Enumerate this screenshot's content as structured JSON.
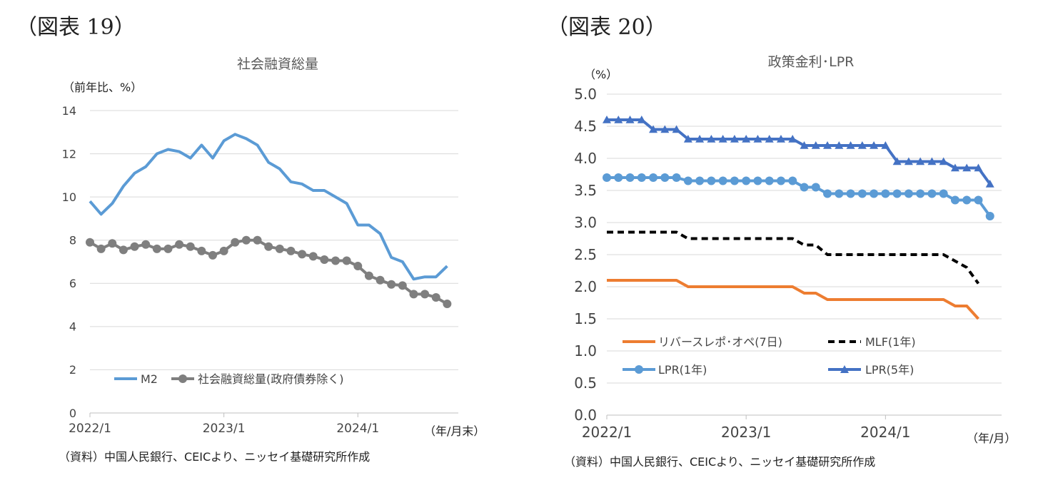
{
  "chart_data": [
    {
      "type": "line",
      "heading": "（図表 19）",
      "title": "社会融資総量",
      "ylabel": "（前年比、%）",
      "xlabel": "（年/月末）",
      "source": "（資料）中国人民銀行、CEICより、ニッセイ基礎研究所作成",
      "ylim": [
        0,
        14
      ],
      "yticks": [
        "0",
        "2",
        "4",
        "6",
        "8",
        "10",
        "12",
        "14"
      ],
      "x_index_range": [
        0,
        33
      ],
      "x_ticks": [
        {
          "index": 0,
          "label": "2022/1"
        },
        {
          "index": 12,
          "label": "2023/1"
        },
        {
          "index": 24,
          "label": "2024/1"
        }
      ],
      "grid": true,
      "legend_position": "bottom-left",
      "months": [
        "2022/1",
        "2022/2",
        "2022/3",
        "2022/4",
        "2022/5",
        "2022/6",
        "2022/7",
        "2022/8",
        "2022/9",
        "2022/10",
        "2022/11",
        "2022/12",
        "2023/1",
        "2023/2",
        "2023/3",
        "2023/4",
        "2023/5",
        "2023/6",
        "2023/7",
        "2023/8",
        "2023/9",
        "2023/10",
        "2023/11",
        "2023/12",
        "2024/1",
        "2024/2",
        "2024/3",
        "2024/4",
        "2024/5",
        "2024/6",
        "2024/7",
        "2024/8",
        "2024/9",
        "2024/10"
      ],
      "series": [
        {
          "name": "M2",
          "color": "#5b9bd5",
          "marker": "none",
          "values": [
            9.8,
            9.2,
            9.7,
            10.5,
            11.1,
            11.4,
            12.0,
            12.2,
            12.1,
            11.8,
            12.4,
            11.8,
            12.6,
            12.9,
            12.7,
            12.4,
            11.6,
            11.3,
            10.7,
            10.6,
            10.3,
            10.3,
            10.0,
            9.7,
            8.7,
            8.7,
            8.3,
            7.2,
            7.0,
            6.2,
            6.3,
            6.3,
            6.8,
            null
          ]
        },
        {
          "name": "社会融資総量(政府債券除く)",
          "color": "#7f7f7f",
          "marker": "circle",
          "values": [
            7.9,
            7.6,
            7.85,
            7.55,
            7.7,
            7.8,
            7.6,
            7.6,
            7.8,
            7.7,
            7.5,
            7.3,
            7.5,
            7.9,
            8.0,
            8.0,
            7.7,
            7.6,
            7.5,
            7.35,
            7.25,
            7.1,
            7.05,
            7.05,
            6.8,
            6.35,
            6.15,
            5.95,
            5.9,
            5.5,
            5.5,
            5.35,
            5.05,
            null
          ]
        }
      ]
    },
    {
      "type": "line",
      "heading": "（図表 20）",
      "title": "政策金利･LPR",
      "ylabel": "（%）",
      "xlabel": "（年/月）",
      "source": "（資料）中国人民銀行、CEICより、ニッセイ基礎研究所作成",
      "ylim": [
        0,
        5
      ],
      "yticks": [
        "0.0",
        "0.5",
        "1.0",
        "1.5",
        "2.0",
        "2.5",
        "3.0",
        "3.5",
        "4.0",
        "4.5",
        "5.0"
      ],
      "x_index_range": [
        0,
        34
      ],
      "x_ticks": [
        {
          "index": 0,
          "label": "2022/1"
        },
        {
          "index": 12,
          "label": "2023/1"
        },
        {
          "index": 24,
          "label": "2024/1"
        }
      ],
      "grid": true,
      "legend_position": "bottom",
      "months": [
        "2022/1",
        "2022/2",
        "2022/3",
        "2022/4",
        "2022/5",
        "2022/6",
        "2022/7",
        "2022/8",
        "2022/9",
        "2022/10",
        "2022/11",
        "2022/12",
        "2023/1",
        "2023/2",
        "2023/3",
        "2023/4",
        "2023/5",
        "2023/6",
        "2023/7",
        "2023/8",
        "2023/9",
        "2023/10",
        "2023/11",
        "2023/12",
        "2024/1",
        "2024/2",
        "2024/3",
        "2024/4",
        "2024/5",
        "2024/6",
        "2024/7",
        "2024/8",
        "2024/9",
        "2024/10"
      ],
      "series": [
        {
          "name": "リバースレポ･オペ(7日)",
          "color": "#ed7d31",
          "marker": "none",
          "dash": "solid",
          "values": [
            2.1,
            2.1,
            2.1,
            2.1,
            2.1,
            2.1,
            2.1,
            2.0,
            2.0,
            2.0,
            2.0,
            2.0,
            2.0,
            2.0,
            2.0,
            2.0,
            2.0,
            1.9,
            1.9,
            1.8,
            1.8,
            1.8,
            1.8,
            1.8,
            1.8,
            1.8,
            1.8,
            1.8,
            1.8,
            1.8,
            1.7,
            1.7,
            1.5,
            null
          ]
        },
        {
          "name": "MLF(1年)",
          "color": "#000000",
          "marker": "none",
          "dash": "dashed",
          "values": [
            2.85,
            2.85,
            2.85,
            2.85,
            2.85,
            2.85,
            2.85,
            2.75,
            2.75,
            2.75,
            2.75,
            2.75,
            2.75,
            2.75,
            2.75,
            2.75,
            2.75,
            2.65,
            2.65,
            2.5,
            2.5,
            2.5,
            2.5,
            2.5,
            2.5,
            2.5,
            2.5,
            2.5,
            2.5,
            2.5,
            2.4,
            2.3,
            2.05,
            null
          ]
        },
        {
          "name": "LPR(1年)",
          "color": "#5b9bd5",
          "marker": "circle",
          "dash": "solid",
          "values": [
            3.7,
            3.7,
            3.7,
            3.7,
            3.7,
            3.7,
            3.7,
            3.65,
            3.65,
            3.65,
            3.65,
            3.65,
            3.65,
            3.65,
            3.65,
            3.65,
            3.65,
            3.55,
            3.55,
            3.45,
            3.45,
            3.45,
            3.45,
            3.45,
            3.45,
            3.45,
            3.45,
            3.45,
            3.45,
            3.45,
            3.35,
            3.35,
            3.35,
            3.1
          ]
        },
        {
          "name": "LPR(5年)",
          "color": "#4472c4",
          "marker": "triangle",
          "dash": "solid",
          "values": [
            4.6,
            4.6,
            4.6,
            4.6,
            4.45,
            4.45,
            4.45,
            4.3,
            4.3,
            4.3,
            4.3,
            4.3,
            4.3,
            4.3,
            4.3,
            4.3,
            4.3,
            4.2,
            4.2,
            4.2,
            4.2,
            4.2,
            4.2,
            4.2,
            4.2,
            3.95,
            3.95,
            3.95,
            3.95,
            3.95,
            3.85,
            3.85,
            3.85,
            3.6
          ]
        }
      ]
    }
  ]
}
